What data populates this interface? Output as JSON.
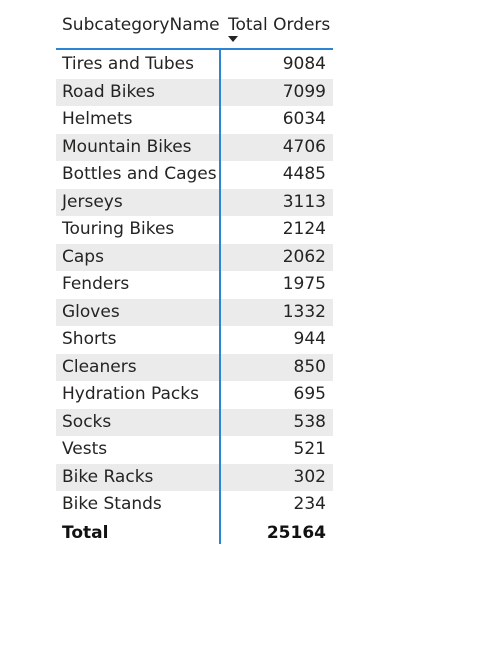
{
  "table": {
    "columns": [
      "SubcategoryName",
      "Total Orders"
    ],
    "sort": {
      "column": "Total Orders",
      "direction": "descending"
    },
    "rows": [
      {
        "name": "Tires and Tubes",
        "value": "9084"
      },
      {
        "name": "Road Bikes",
        "value": "7099"
      },
      {
        "name": "Helmets",
        "value": "6034"
      },
      {
        "name": "Mountain Bikes",
        "value": "4706"
      },
      {
        "name": "Bottles and Cages",
        "value": "4485"
      },
      {
        "name": "Jerseys",
        "value": "3113"
      },
      {
        "name": "Touring Bikes",
        "value": "2124"
      },
      {
        "name": "Caps",
        "value": "2062"
      },
      {
        "name": "Fenders",
        "value": "1975"
      },
      {
        "name": "Gloves",
        "value": "1332"
      },
      {
        "name": "Shorts",
        "value": "944"
      },
      {
        "name": "Cleaners",
        "value": "850"
      },
      {
        "name": "Hydration Packs",
        "value": "695"
      },
      {
        "name": "Socks",
        "value": "538"
      },
      {
        "name": "Vests",
        "value": "521"
      },
      {
        "name": "Bike Racks",
        "value": "302"
      },
      {
        "name": "Bike Stands",
        "value": "234"
      }
    ],
    "total": {
      "label": "Total",
      "value": "25164"
    }
  },
  "colors": {
    "accent": "#2c84d3",
    "row_band": "#ebebeb",
    "text": "#252423"
  }
}
